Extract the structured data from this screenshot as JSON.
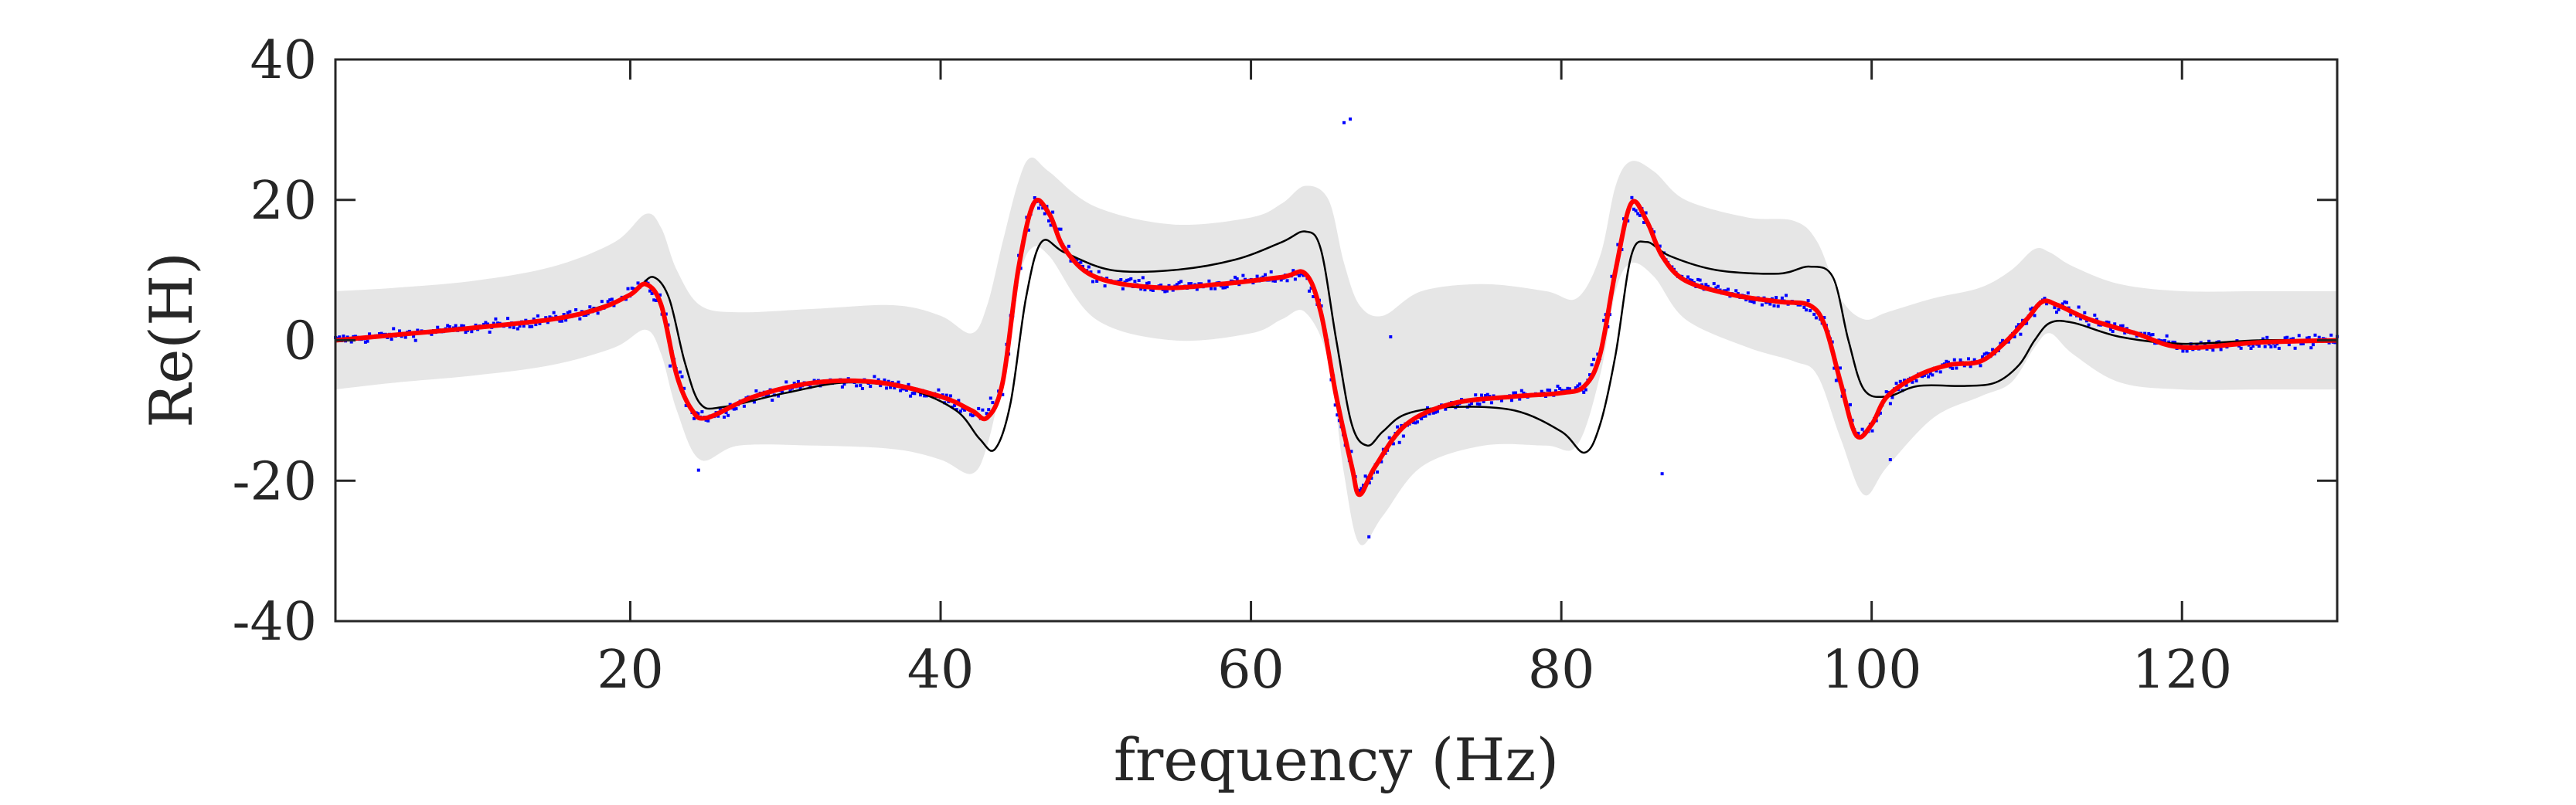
{
  "chart_data": {
    "type": "line",
    "title": "",
    "xlabel": "frequency (Hz)",
    "ylabel": "Re(H)",
    "xlim": [
      1,
      130
    ],
    "ylim": [
      -40,
      40
    ],
    "xticks": [
      20,
      40,
      60,
      80,
      100,
      120
    ],
    "yticks": [
      -40,
      -20,
      0,
      20,
      40
    ],
    "xtick_labels": [
      "20",
      "40",
      "60",
      "80",
      "100",
      "120"
    ],
    "ytick_labels": [
      "-40",
      "-20",
      "0",
      "20",
      "40"
    ],
    "grid": false,
    "legend": "none",
    "colors": {
      "band": "#e6e6e6",
      "fit": "#ff0000",
      "reference": "#000000",
      "points": "#0000ff",
      "axes": "#262626"
    },
    "series": [
      {
        "role": "band",
        "x": [
          1,
          5,
          10,
          15,
          19,
          21,
          22,
          23,
          24.5,
          27,
          32,
          37,
          40,
          42,
          43,
          44,
          45,
          45.8,
          47,
          50,
          55,
          60,
          62,
          63.5,
          65,
          66,
          67,
          68.5,
          71,
          75,
          79,
          81,
          82.5,
          83.5,
          84.5,
          86,
          88,
          92,
          95,
          96.5,
          98,
          99.5,
          101,
          104,
          107,
          109,
          110.5,
          111.5,
          113,
          116,
          120,
          125,
          130
        ],
        "upper": [
          7,
          7.5,
          8.5,
          10.5,
          14,
          18,
          16,
          10,
          5,
          4,
          4.5,
          5,
          3.5,
          1,
          5,
          14,
          22.5,
          26,
          24,
          19,
          16.5,
          17.5,
          19.5,
          22,
          20,
          11,
          5,
          3.5,
          7,
          8,
          7,
          6,
          12,
          22,
          25.5,
          24,
          20,
          17.5,
          17,
          14,
          6,
          3,
          4,
          6,
          7.5,
          10,
          13,
          12.5,
          10.5,
          8,
          7,
          7,
          7
        ],
        "lower": [
          -7,
          -6,
          -5,
          -3.5,
          -1,
          1.5,
          -2,
          -10,
          -17,
          -15,
          -15,
          -15.5,
          -17,
          -19,
          -15,
          -5,
          8,
          13,
          12,
          3,
          0,
          1,
          3,
          4,
          -3,
          -19,
          -29,
          -25,
          -18,
          -15,
          -15,
          -15,
          -5,
          7,
          11,
          9,
          3,
          -1,
          -3,
          -5,
          -14,
          -22,
          -18,
          -11,
          -8,
          -6,
          -1,
          1,
          -2,
          -6,
          -7,
          -7,
          -7
        ]
      },
      {
        "role": "fit",
        "x": [
          1,
          5,
          10,
          15,
          18,
          20,
          21,
          22,
          23,
          24,
          25,
          28,
          32,
          36,
          40,
          42,
          43,
          44,
          45,
          46,
          47,
          48,
          50,
          54,
          58,
          62,
          63.5,
          64.5,
          65.5,
          66.5,
          67,
          68,
          70,
          73,
          77,
          80,
          81.5,
          82.5,
          83.5,
          84.5,
          85.5,
          86.5,
          88,
          91,
          94,
          96,
          97,
          98,
          99,
          100,
          101,
          103,
          105,
          107,
          108.5,
          110,
          111,
          112,
          114,
          117,
          120,
          125,
          130
        ],
        "values": [
          0,
          0.8,
          1.8,
          3,
          4.5,
          6.5,
          8,
          5,
          -5,
          -10,
          -11,
          -8,
          -6,
          -6,
          -8,
          -10,
          -11,
          -6,
          10,
          19.5,
          18,
          13,
          9,
          7.5,
          8,
          9,
          9.5,
          4,
          -8,
          -18,
          -22,
          -18,
          -12,
          -9,
          -8,
          -7.5,
          -6.5,
          -2,
          10,
          19.5,
          17,
          12,
          8.5,
          6.5,
          5.5,
          5,
          2,
          -6,
          -13.5,
          -12,
          -8,
          -5,
          -3.5,
          -3,
          -0.5,
          3,
          5.5,
          5,
          3,
          1,
          -1,
          -0.3,
          0
        ]
      },
      {
        "role": "reference",
        "x": [
          1,
          5,
          10,
          15,
          19,
          20.5,
          21.5,
          22.5,
          23.5,
          24.5,
          26,
          30,
          34,
          38,
          41,
          42.5,
          43.5,
          44.5,
          45.5,
          46.5,
          48,
          51,
          55,
          59,
          62,
          63.5,
          64.5,
          65.5,
          66.5,
          67.5,
          68.5,
          70,
          73,
          77,
          80,
          81.5,
          82.5,
          83.5,
          84.5,
          85.5,
          87,
          90,
          94,
          96,
          97.5,
          98.5,
          99.5,
          101,
          103,
          106,
          108,
          109.5,
          110.5,
          111.5,
          113,
          116,
          120,
          125,
          130
        ],
        "values": [
          0,
          0.8,
          1.8,
          3,
          5.5,
          7.5,
          9,
          6,
          -3,
          -9,
          -9.5,
          -7.5,
          -6,
          -7,
          -10,
          -14,
          -15.5,
          -9,
          6,
          14,
          12.5,
          10,
          10,
          11.5,
          14,
          15.5,
          13,
          0,
          -12,
          -15,
          -13,
          -10.5,
          -9.5,
          -10,
          -13,
          -16,
          -12,
          -2,
          12,
          14,
          12,
          10,
          9.5,
          10.5,
          9,
          0,
          -7,
          -8,
          -6.5,
          -6.5,
          -6,
          -3.5,
          0,
          2.5,
          2.5,
          0.5,
          -0.5,
          0,
          0
        ]
      },
      {
        "role": "points",
        "count": 1000,
        "outliers": [
          [
            66.0,
            31
          ],
          [
            66.4,
            31.5
          ],
          [
            86.5,
            -19
          ],
          [
            69.0,
            0.5
          ],
          [
            24.4,
            -18.5
          ],
          [
            67.6,
            -28
          ],
          [
            101.2,
            -17
          ]
        ]
      }
    ]
  }
}
